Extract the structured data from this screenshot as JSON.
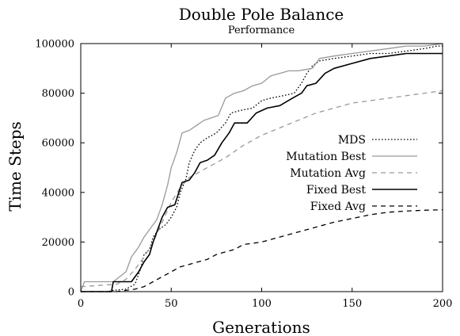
{
  "chart_data": {
    "type": "line",
    "title": "Double Pole Balance",
    "subtitle": "Performance",
    "xlabel": "Generations",
    "ylabel": "Time Steps",
    "xlim": [
      0,
      200
    ],
    "ylim": [
      0,
      100000
    ],
    "x_ticks": [
      0,
      50,
      100,
      150,
      200
    ],
    "y_ticks": [
      0,
      20000,
      40000,
      60000,
      80000,
      100000
    ],
    "grid": false,
    "legend_position": "right",
    "series": [
      {
        "name": "MDS",
        "color": "#000000",
        "dash": "dotted",
        "points": [
          [
            0,
            0
          ],
          [
            15,
            0
          ],
          [
            18,
            500
          ],
          [
            25,
            1000
          ],
          [
            30,
            3000
          ],
          [
            33,
            9000
          ],
          [
            35,
            15000
          ],
          [
            38,
            17000
          ],
          [
            40,
            22000
          ],
          [
            43,
            25000
          ],
          [
            47,
            27000
          ],
          [
            50,
            30000
          ],
          [
            53,
            34000
          ],
          [
            55,
            40000
          ],
          [
            58,
            45000
          ],
          [
            60,
            52000
          ],
          [
            63,
            57000
          ],
          [
            66,
            60000
          ],
          [
            70,
            62000
          ],
          [
            75,
            64000
          ],
          [
            80,
            68000
          ],
          [
            83,
            72000
          ],
          [
            88,
            73000
          ],
          [
            95,
            74000
          ],
          [
            100,
            77000
          ],
          [
            105,
            78000
          ],
          [
            112,
            79000
          ],
          [
            118,
            80000
          ],
          [
            122,
            84000
          ],
          [
            125,
            88000
          ],
          [
            128,
            91000
          ],
          [
            132,
            93000
          ],
          [
            140,
            94000
          ],
          [
            150,
            95000
          ],
          [
            160,
            96000
          ],
          [
            170,
            96000
          ],
          [
            180,
            97000
          ],
          [
            190,
            98000
          ],
          [
            197,
            99000
          ],
          [
            200,
            99000
          ]
        ]
      },
      {
        "name": "Mutation Best",
        "color": "#999999",
        "dash": "solid",
        "points": [
          [
            0,
            0
          ],
          [
            2,
            4000
          ],
          [
            18,
            4000
          ],
          [
            25,
            8000
          ],
          [
            28,
            14000
          ],
          [
            32,
            18000
          ],
          [
            35,
            22000
          ],
          [
            38,
            25000
          ],
          [
            42,
            29000
          ],
          [
            45,
            35000
          ],
          [
            48,
            43000
          ],
          [
            50,
            50000
          ],
          [
            53,
            56000
          ],
          [
            56,
            64000
          ],
          [
            60,
            65000
          ],
          [
            64,
            67000
          ],
          [
            68,
            69000
          ],
          [
            72,
            70000
          ],
          [
            76,
            71000
          ],
          [
            80,
            78000
          ],
          [
            85,
            80000
          ],
          [
            90,
            81000
          ],
          [
            95,
            83000
          ],
          [
            100,
            84000
          ],
          [
            105,
            87000
          ],
          [
            110,
            88000
          ],
          [
            115,
            89000
          ],
          [
            120,
            89000
          ],
          [
            128,
            90000
          ],
          [
            132,
            94000
          ],
          [
            140,
            95000
          ],
          [
            150,
            96000
          ],
          [
            160,
            97000
          ],
          [
            170,
            98000
          ],
          [
            180,
            99000
          ],
          [
            190,
            99000
          ],
          [
            200,
            100000
          ]
        ]
      },
      {
        "name": "Mutation Avg",
        "color": "#999999",
        "dash": "dashed",
        "points": [
          [
            0,
            2000
          ],
          [
            10,
            2500
          ],
          [
            20,
            3000
          ],
          [
            25,
            5000
          ],
          [
            30,
            9000
          ],
          [
            35,
            14000
          ],
          [
            40,
            20000
          ],
          [
            45,
            28000
          ],
          [
            50,
            36000
          ],
          [
            55,
            42000
          ],
          [
            60,
            46000
          ],
          [
            65,
            48000
          ],
          [
            70,
            50000
          ],
          [
            75,
            52000
          ],
          [
            80,
            54000
          ],
          [
            90,
            59000
          ],
          [
            100,
            63000
          ],
          [
            110,
            66000
          ],
          [
            120,
            69000
          ],
          [
            130,
            72000
          ],
          [
            140,
            74000
          ],
          [
            150,
            76000
          ],
          [
            160,
            77000
          ],
          [
            170,
            78000
          ],
          [
            180,
            79000
          ],
          [
            190,
            80000
          ],
          [
            200,
            81000
          ]
        ]
      },
      {
        "name": "Fixed Best",
        "color": "#000000",
        "dash": "solid",
        "points": [
          [
            0,
            0
          ],
          [
            17,
            0
          ],
          [
            18,
            4000
          ],
          [
            28,
            4000
          ],
          [
            32,
            8000
          ],
          [
            35,
            12000
          ],
          [
            38,
            15000
          ],
          [
            40,
            20000
          ],
          [
            43,
            26000
          ],
          [
            45,
            30000
          ],
          [
            48,
            34000
          ],
          [
            52,
            35000
          ],
          [
            56,
            44000
          ],
          [
            60,
            45000
          ],
          [
            63,
            48000
          ],
          [
            66,
            52000
          ],
          [
            70,
            53000
          ],
          [
            74,
            55000
          ],
          [
            78,
            60000
          ],
          [
            82,
            64000
          ],
          [
            85,
            68000
          ],
          [
            92,
            68000
          ],
          [
            97,
            72000
          ],
          [
            103,
            74000
          ],
          [
            110,
            75000
          ],
          [
            117,
            78000
          ],
          [
            122,
            80000
          ],
          [
            125,
            83000
          ],
          [
            130,
            84000
          ],
          [
            135,
            88000
          ],
          [
            140,
            90000
          ],
          [
            150,
            92000
          ],
          [
            160,
            94000
          ],
          [
            170,
            95000
          ],
          [
            180,
            96000
          ],
          [
            190,
            96000
          ],
          [
            200,
            96000
          ]
        ]
      },
      {
        "name": "Fixed Avg",
        "color": "#000000",
        "dash": "dashed",
        "points": [
          [
            0,
            0
          ],
          [
            20,
            0
          ],
          [
            25,
            500
          ],
          [
            30,
            1000
          ],
          [
            35,
            2000
          ],
          [
            40,
            4000
          ],
          [
            45,
            6000
          ],
          [
            50,
            8000
          ],
          [
            55,
            10000
          ],
          [
            60,
            11000
          ],
          [
            65,
            12000
          ],
          [
            70,
            13000
          ],
          [
            75,
            15000
          ],
          [
            80,
            16000
          ],
          [
            85,
            17000
          ],
          [
            90,
            19000
          ],
          [
            95,
            19500
          ],
          [
            100,
            20000
          ],
          [
            105,
            21000
          ],
          [
            110,
            22000
          ],
          [
            115,
            23000
          ],
          [
            120,
            24000
          ],
          [
            125,
            25000
          ],
          [
            130,
            26000
          ],
          [
            140,
            28000
          ],
          [
            150,
            29500
          ],
          [
            160,
            31000
          ],
          [
            170,
            32000
          ],
          [
            180,
            32500
          ],
          [
            190,
            32800
          ],
          [
            200,
            33000
          ]
        ]
      }
    ]
  }
}
